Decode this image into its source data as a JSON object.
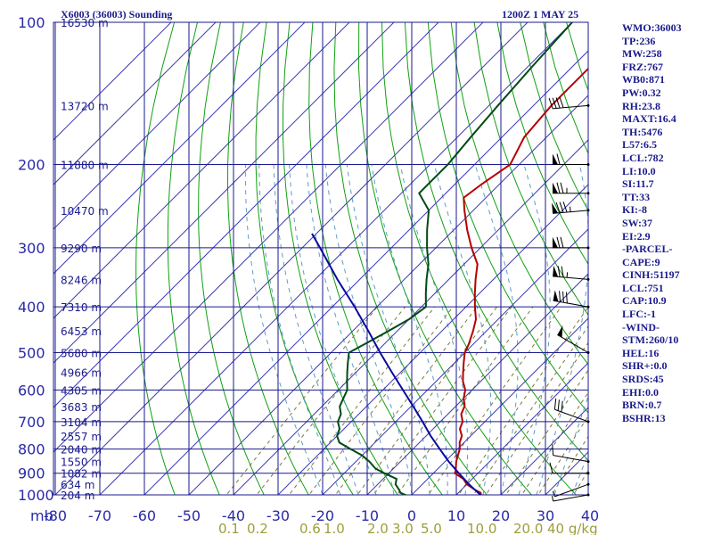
{
  "title_left": "X6003 (36003) Sounding",
  "title_right": "1200Z  1 MAY 25",
  "colors": {
    "grid": "#1a1a8c",
    "dry_adiabat": "#10a010",
    "isotherm": "#3c3cb4",
    "moist_adiabat": "#5f9cc8",
    "mixing_ratio": "#7a7a3a",
    "temperature": "#b40000",
    "dewpoint": "#004a14",
    "parcel": "#0a0aa0",
    "text": "#1a1a8c"
  },
  "indices": [
    "WMO:36003",
    "TP:236",
    "MW:258",
    "FRZ:767",
    "WB0:871",
    "PW:0.32",
    "RH:23.8",
    "MAXT:16.4",
    "TH:5476",
    "L57:6.5",
    "LCL:782",
    "LI:10.0",
    "SI:11.7",
    "TT:33",
    "KI:-8",
    "SW:37",
    "EI:2.9",
    "-PARCEL-",
    "CAPE:9",
    "CINH:51197",
    "LCL:751",
    "CAP:10.9",
    "LFC:-1",
    "-WIND-",
    "STM:260/10",
    "HEL:16",
    "SHR+:0.0",
    "SRDS:45",
    "EHI:0.0",
    "BRN:0.7",
    "BSHR:13"
  ],
  "chart_data": {
    "type": "line",
    "title": "X6003 (36003) Sounding",
    "subtitle": "1200Z  1 MAY 25",
    "xlabel": "",
    "ylabel": "mb",
    "y_scale": "log",
    "pressure_ticks": [
      100,
      200,
      300,
      400,
      500,
      600,
      700,
      800,
      900,
      1000
    ],
    "temperature_ticks": [
      -80,
      -70,
      -60,
      -50,
      -40,
      -30,
      -20,
      -10,
      0,
      10,
      20,
      30,
      40
    ],
    "xlim_celsius": [
      -80,
      40
    ],
    "ylim_mb": [
      1000,
      100
    ],
    "grid": true,
    "height_labels": [
      {
        "p": 100,
        "label": "16530 m"
      },
      {
        "p": 150,
        "label": "13720 m"
      },
      {
        "p": 200,
        "label": "11880 m"
      },
      {
        "p": 250,
        "label": "10470 m"
      },
      {
        "p": 300,
        "label": "9290 m"
      },
      {
        "p": 350,
        "label": "8246 m"
      },
      {
        "p": 400,
        "label": "7310 m"
      },
      {
        "p": 450,
        "label": "6453 m"
      },
      {
        "p": 500,
        "label": "5680 m"
      },
      {
        "p": 550,
        "label": "4966 m"
      },
      {
        "p": 600,
        "label": "4305 m"
      },
      {
        "p": 650,
        "label": "3683 m"
      },
      {
        "p": 700,
        "label": "3104 m"
      },
      {
        "p": 750,
        "label": "2557 m"
      },
      {
        "p": 800,
        "label": "2040 m"
      },
      {
        "p": 850,
        "label": "1550 m"
      },
      {
        "p": 900,
        "label": "1082 m"
      },
      {
        "p": 950,
        "label": "634 m"
      },
      {
        "p": 1000,
        "label": "204 m"
      }
    ],
    "mixing_ratio_labels": [
      "0.1",
      "0.2",
      "0.6",
      "1.0",
      "2.0",
      "3.0",
      "5.0",
      "10.0",
      "20.0",
      "40 g/kg"
    ],
    "series": [
      {
        "name": "Temperature",
        "color": "#b40000",
        "points": [
          [
            1003,
            15.7
          ],
          [
            990,
            15
          ],
          [
            975,
            13
          ],
          [
            950,
            10
          ],
          [
            925,
            8
          ],
          [
            900,
            4.8
          ],
          [
            890,
            4.5
          ],
          [
            870,
            3.5
          ],
          [
            850,
            2.5
          ],
          [
            825,
            1.5
          ],
          [
            800,
            0.5
          ],
          [
            775,
            -1
          ],
          [
            750,
            -2
          ],
          [
            725,
            -4
          ],
          [
            700,
            -5
          ],
          [
            675,
            -7
          ],
          [
            650,
            -8
          ],
          [
            625,
            -10
          ],
          [
            600,
            -11.5
          ],
          [
            575,
            -14
          ],
          [
            550,
            -16
          ],
          [
            525,
            -18
          ],
          [
            500,
            -20
          ],
          [
            480,
            -21
          ],
          [
            450,
            -23
          ],
          [
            425,
            -25
          ],
          [
            400,
            -28
          ],
          [
            375,
            -31
          ],
          [
            350,
            -34
          ],
          [
            325,
            -37
          ],
          [
            300,
            -42
          ],
          [
            275,
            -47
          ],
          [
            250,
            -52
          ],
          [
            235,
            -55
          ],
          [
            220,
            -54
          ],
          [
            200,
            -52
          ],
          [
            175,
            -55
          ],
          [
            150,
            -56
          ],
          [
            125,
            -56
          ],
          [
            100,
            -56
          ]
        ]
      },
      {
        "name": "Dewpoint",
        "color": "#004a14",
        "points": [
          [
            1003,
            -1
          ],
          [
            990,
            -3
          ],
          [
            975,
            -4
          ],
          [
            950,
            -6
          ],
          [
            925,
            -7
          ],
          [
            900,
            -11
          ],
          [
            880,
            -14
          ],
          [
            850,
            -17
          ],
          [
            825,
            -20
          ],
          [
            800,
            -24
          ],
          [
            775,
            -28
          ],
          [
            750,
            -30
          ],
          [
            725,
            -31
          ],
          [
            700,
            -33
          ],
          [
            675,
            -34
          ],
          [
            650,
            -36
          ],
          [
            625,
            -37
          ],
          [
            600,
            -38
          ],
          [
            575,
            -40
          ],
          [
            550,
            -42
          ],
          [
            525,
            -44
          ],
          [
            500,
            -46
          ],
          [
            475,
            -44
          ],
          [
            450,
            -42
          ],
          [
            425,
            -40
          ],
          [
            400,
            -39
          ],
          [
            375,
            -42
          ],
          [
            350,
            -45
          ],
          [
            325,
            -48
          ],
          [
            300,
            -52
          ],
          [
            275,
            -56
          ],
          [
            250,
            -60
          ],
          [
            230,
            -66
          ],
          [
            200,
            -66
          ],
          [
            175,
            -67
          ],
          [
            150,
            -68
          ],
          [
            125,
            -69
          ],
          [
            100,
            -70
          ]
        ]
      },
      {
        "name": "Parcel",
        "color": "#0a0aa0",
        "points": [
          [
            1003,
            15.7
          ],
          [
            950,
            10.5
          ],
          [
            900,
            5.7
          ],
          [
            850,
            0.8
          ],
          [
            800,
            -4
          ],
          [
            750,
            -9
          ],
          [
            700,
            -14
          ],
          [
            650,
            -19.5
          ],
          [
            600,
            -25.5
          ],
          [
            550,
            -32
          ],
          [
            500,
            -39
          ],
          [
            450,
            -46.5
          ],
          [
            400,
            -55
          ],
          [
            350,
            -65
          ],
          [
            300,
            -76
          ],
          [
            280,
            -81
          ]
        ]
      }
    ],
    "wind_barbs": [
      {
        "p": 1000,
        "dir": 260,
        "spd": 5
      },
      {
        "p": 950,
        "dir": 250,
        "spd": 5
      },
      {
        "p": 900,
        "dir": 270,
        "spd": 10
      },
      {
        "p": 850,
        "dir": 280,
        "spd": 10
      },
      {
        "p": 700,
        "dir": 290,
        "spd": 30
      },
      {
        "p": 500,
        "dir": 300,
        "spd": 50
      },
      {
        "p": 400,
        "dir": 280,
        "spd": 80
      },
      {
        "p": 350,
        "dir": 275,
        "spd": 75
      },
      {
        "p": 300,
        "dir": 270,
        "spd": 70
      },
      {
        "p": 250,
        "dir": 265,
        "spd": 85
      },
      {
        "p": 230,
        "dir": 270,
        "spd": 75
      },
      {
        "p": 200,
        "dir": 270,
        "spd": 60
      },
      {
        "p": 150,
        "dir": 265,
        "spd": 40
      }
    ]
  }
}
